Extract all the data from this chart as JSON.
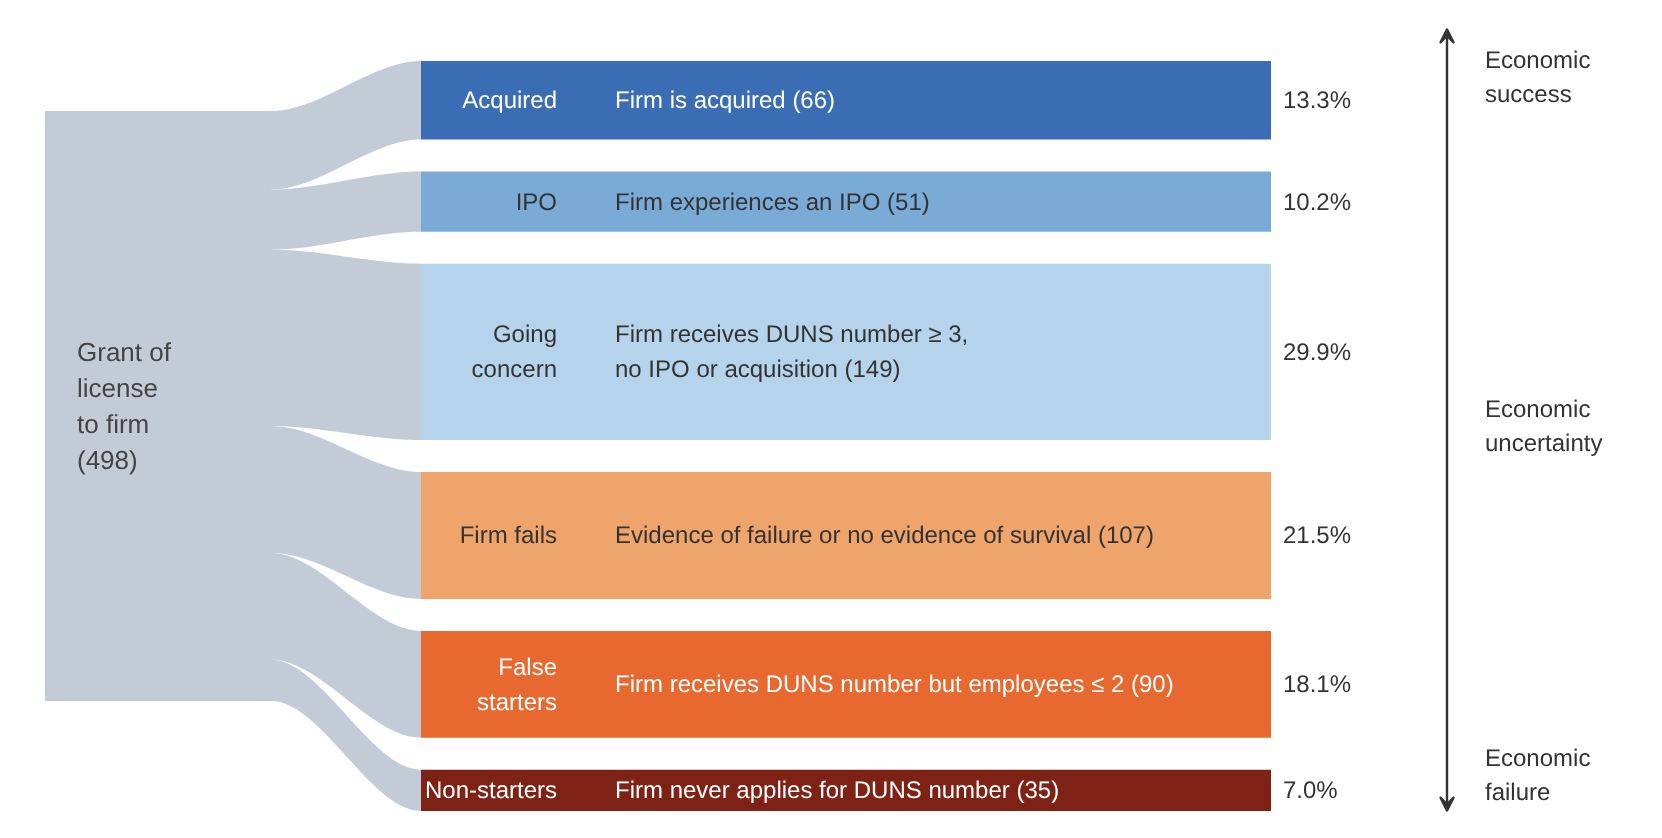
{
  "chart_data": {
    "type": "other",
    "categories": [
      "Acquired",
      "IPO",
      "Going\nconcern",
      "Firm fails",
      "False\nstarters",
      "Non-starters"
    ],
    "values": [
      13.3,
      10.2,
      29.9,
      21.5,
      18.1,
      7.0
    ],
    "value_labels": [
      "13.3%",
      "10.2%",
      "29.9%",
      "21.5%",
      "18.1%",
      "7.0%"
    ],
    "colors": [
      "#3a6db3",
      "#7aaad6",
      "#b5d3ea",
      "#efa46c",
      "#e8692f",
      "#7f2216"
    ],
    "annotations": [
      "Grant of\nlicense\nto firm\n(498)",
      {
        "text": "Firm is acquired  (66)"
      },
      {
        "text": "Firm experiences an IPO  (51)"
      },
      {
        "text": "Firm receives DUNS number ≥ 3,\nno IPO or acquisition  (149)"
      },
      {
        "text": "Evidence of failure or no evidence of survival  (107)"
      },
      {
        "text": "Firm receives DUNS number but employees ≤ 2  (90)"
      },
      {
        "text": "Firm never applies for DUNS number  (35)"
      },
      "Economic\nsuccess",
      "Economic\nuncertainty",
      "Economic\nfailure"
    ]
  }
}
